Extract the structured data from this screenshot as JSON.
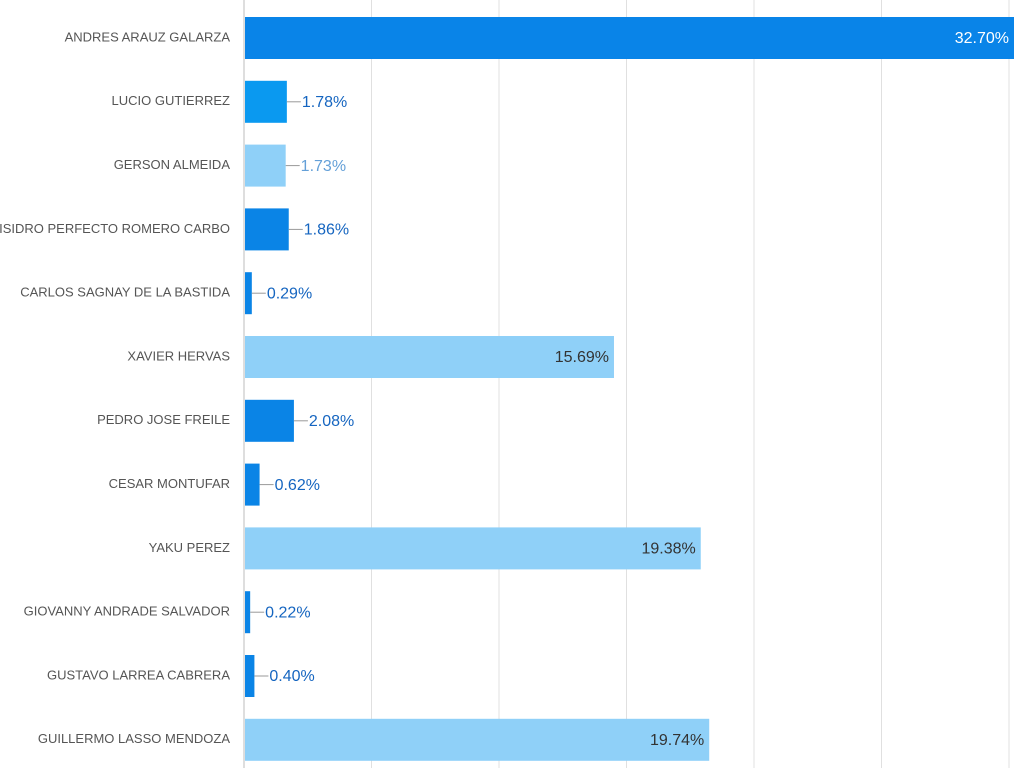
{
  "chart_data": {
    "type": "bar",
    "orientation": "horizontal",
    "title": "",
    "xlabel": "",
    "ylabel": "",
    "xlim": [
      0,
      33
    ],
    "grid": true,
    "legend": "none",
    "categories": [
      "ANDRES ARAUZ GALARZA",
      "LUCIO GUTIERREZ",
      "GERSON ALMEIDA",
      "ISIDRO PERFECTO ROMERO CARBO",
      "CARLOS SAGNAY DE LA BASTIDA",
      "XAVIER HERVAS",
      "PEDRO JOSE FREILE",
      "CESAR MONTUFAR",
      "YAKU PEREZ",
      "GIOVANNY ANDRADE SALVADOR",
      "GUSTAVO LARREA CABRERA",
      "GUILLERMO LASSO MENDOZA"
    ],
    "values": [
      32.7,
      1.78,
      1.73,
      1.86,
      0.29,
      15.69,
      2.08,
      0.62,
      19.38,
      0.22,
      0.4,
      19.74
    ],
    "value_labels": [
      "32.70%",
      "1.78%",
      "1.73%",
      "1.86%",
      "0.29%",
      "15.69%",
      "2.08%",
      "0.62%",
      "19.38%",
      "0.22%",
      "0.40%",
      "19.74%"
    ],
    "bar_colors": [
      "#0984e8",
      "#0a99f0",
      "#8fd0f8",
      "#0a84e6",
      "#0a84e6",
      "#8fd0f8",
      "#0a84e6",
      "#0a84e6",
      "#8fd0f8",
      "#0a84e6",
      "#0a84e6",
      "#8fd0f8"
    ],
    "label_inside": [
      true,
      false,
      false,
      false,
      false,
      true,
      false,
      false,
      true,
      false,
      false,
      true
    ],
    "label_color_inside_dark": "#ffffff",
    "label_color_inside_light": "#333333",
    "label_color_outside": "#1565c0",
    "label_color_outside_light": "#64a0d8",
    "connector_color": "#999999",
    "category_label_color": "#555555",
    "gridline_color": "#e0e0e0",
    "axis_color": "#bdbdbd"
  }
}
